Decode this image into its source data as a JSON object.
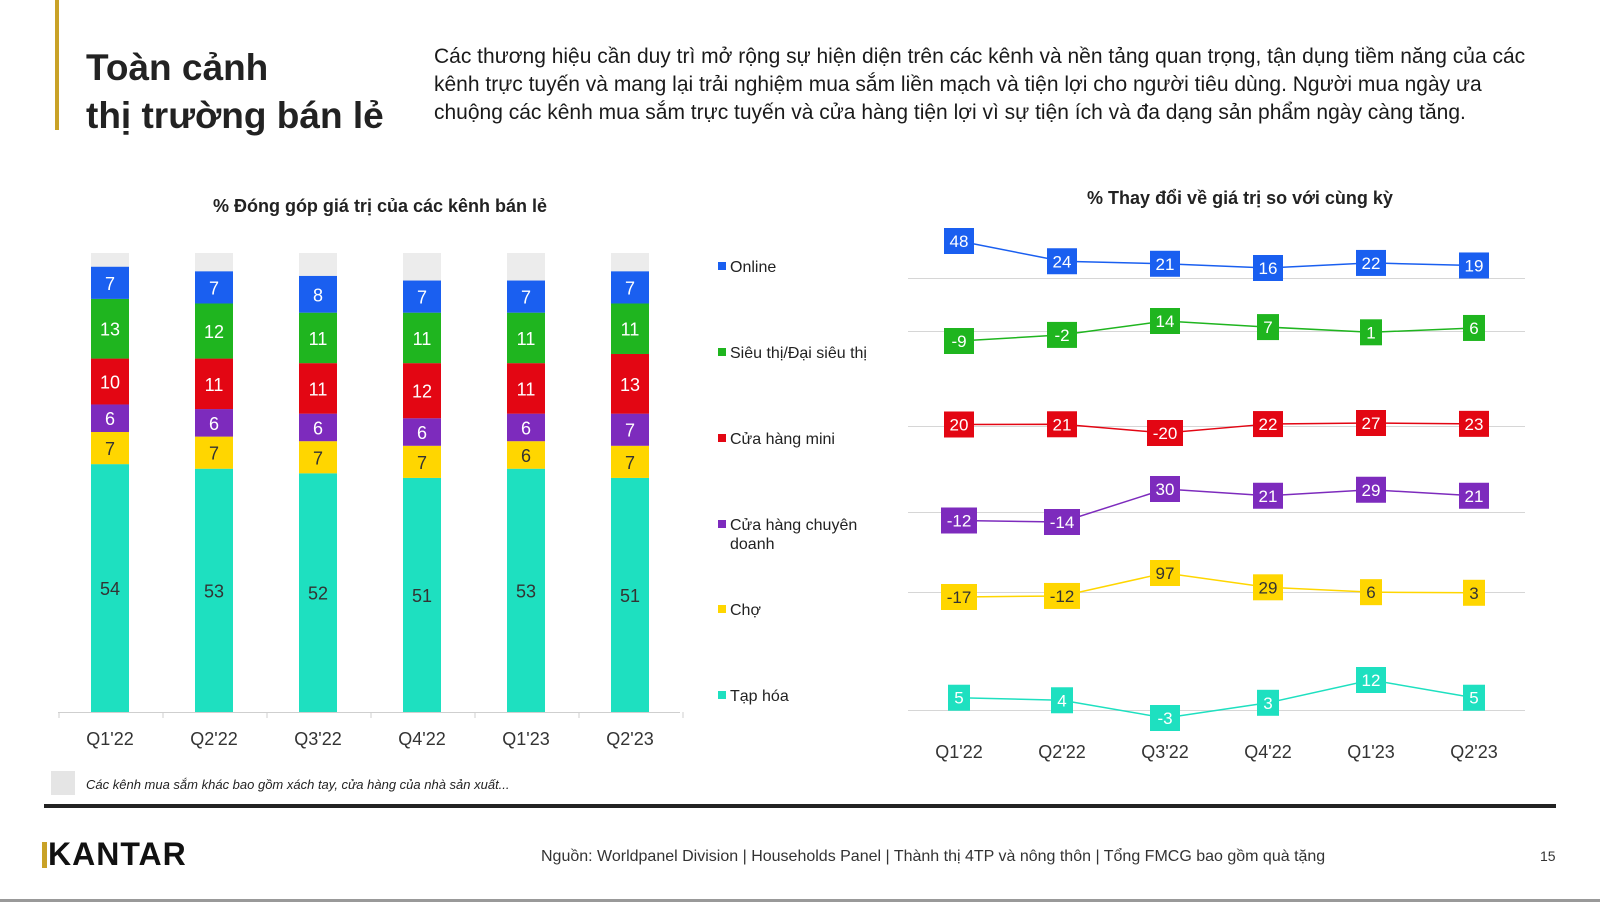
{
  "header": {
    "title_line1": "Toàn cảnh",
    "title_line2": "thị trường bán lẻ",
    "intro": "Các thương hiệu cần duy trì mở rộng sự hiện diện trên các kênh và nền tảng quan trọng, tận dụng tiềm năng của các kênh trực tuyến và mang lại trải nghiệm mua sắm liền mạch và tiện lợi cho người tiêu dùng. Người mua ngày ưa chuộng các kênh mua sắm trực tuyến và cửa hàng tiện lợi vì sự tiện ích và đa dạng sản phẩm ngày càng tăng."
  },
  "legend": [
    {
      "label": "Online",
      "color": "#1a5ff0"
    },
    {
      "label": "Siêu thị/Đại siêu thị",
      "color": "#1fb51f"
    },
    {
      "label": "Cửa hàng mini",
      "color": "#e30613"
    },
    {
      "label": "Cửa hàng chuyên doanh",
      "color": "#7d2bbd"
    },
    {
      "label": "Chợ",
      "color": "#ffd600"
    },
    {
      "label": "Tạp hóa",
      "color": "#1ee0c0"
    }
  ],
  "chart_data": [
    {
      "type": "bar",
      "stacked": true,
      "title": "% Đóng góp giá trị của các kênh bán lẻ",
      "categories": [
        "Q1'22",
        "Q2'22",
        "Q3'22",
        "Q4'22",
        "Q1'23",
        "Q2'23"
      ],
      "series": [
        {
          "name": "Tạp hóa",
          "color": "#1ee0c0",
          "values": [
            54,
            53,
            52,
            51,
            53,
            51
          ]
        },
        {
          "name": "Chợ",
          "color": "#ffd600",
          "values": [
            7,
            7,
            7,
            7,
            6,
            7
          ]
        },
        {
          "name": "Cửa hàng chuyên doanh",
          "color": "#7d2bbd",
          "values": [
            6,
            6,
            6,
            6,
            6,
            7
          ]
        },
        {
          "name": "Cửa hàng mini",
          "color": "#e30613",
          "values": [
            10,
            11,
            11,
            12,
            11,
            13
          ]
        },
        {
          "name": "Siêu thị/Đại siêu thị",
          "color": "#1fb51f",
          "values": [
            13,
            12,
            11,
            11,
            11,
            11
          ]
        },
        {
          "name": "Online",
          "color": "#1a5ff0",
          "values": [
            7,
            7,
            8,
            7,
            7,
            7
          ]
        }
      ],
      "other_color": "#ececec",
      "note": "Các kênh mua sắm khác bao gồm xách tay, cửa hàng của nhà sản xuất...",
      "ylim": [
        0,
        100
      ]
    },
    {
      "type": "line",
      "title": "% Thay đổi về giá trị so với cùng kỳ",
      "categories": [
        "Q1'22",
        "Q2'22",
        "Q3'22",
        "Q4'22",
        "Q1'23",
        "Q2'23"
      ],
      "series": [
        {
          "name": "Online",
          "color": "#1a5ff0",
          "values": [
            48,
            24,
            21,
            16,
            22,
            19
          ]
        },
        {
          "name": "Siêu thị/Đại siêu thị",
          "color": "#1fb51f",
          "values": [
            -9,
            -2,
            14,
            7,
            1,
            6
          ]
        },
        {
          "name": "Cửa hàng mini",
          "color": "#e30613",
          "values": [
            20,
            21,
            -20,
            22,
            27,
            23
          ]
        },
        {
          "name": "Cửa hàng chuyên doanh",
          "color": "#7d2bbd",
          "values": [
            -12,
            -14,
            30,
            21,
            29,
            21
          ]
        },
        {
          "name": "Chợ",
          "color": "#ffd600",
          "values": [
            -17,
            -12,
            97,
            29,
            6,
            3
          ]
        },
        {
          "name": "Tạp hóa",
          "color": "#1ee0c0",
          "values": [
            5,
            4,
            -3,
            3,
            12,
            5
          ]
        }
      ]
    }
  ],
  "footer": {
    "logo": "KANTAR",
    "source": "Nguồn: Worldpanel Division | Households Panel | Thành thị 4TP và nông thôn | Tổng FMCG bao gồm quà tặng",
    "page_number": "15"
  }
}
